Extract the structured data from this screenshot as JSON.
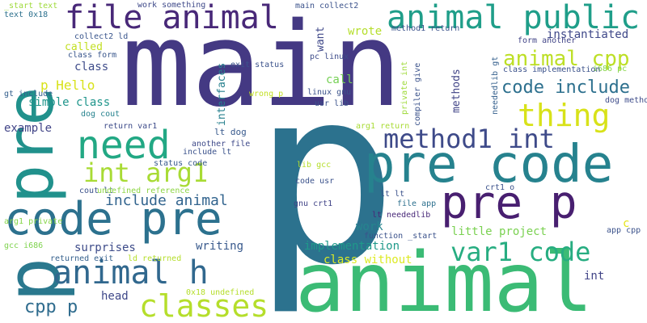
{
  "words": [
    {
      "text": "main"
    },
    {
      "text": "p"
    },
    {
      "text": "animal"
    },
    {
      "text": "pre"
    },
    {
      "text": "pre code"
    },
    {
      "text": "code pre"
    },
    {
      "text": "pre p"
    },
    {
      "text": "p"
    },
    {
      "text": "file animal"
    },
    {
      "text": "animal public"
    },
    {
      "text": "need"
    },
    {
      "text": "animal h"
    },
    {
      "text": "method1 int"
    },
    {
      "text": "classes"
    },
    {
      "text": "int arg1"
    },
    {
      "text": "thing"
    },
    {
      "text": "animal cpp"
    },
    {
      "text": "code include"
    },
    {
      "text": "var1 code"
    },
    {
      "text": "include animal"
    },
    {
      "text": "cpp p"
    },
    {
      "text": "instantiated"
    },
    {
      "text": "p Hello"
    },
    {
      "text": "wrote"
    },
    {
      "text": "called"
    },
    {
      "text": "class"
    },
    {
      "text": "simple class"
    },
    {
      "text": "example"
    },
    {
      "text": "call"
    },
    {
      "text": "writing"
    },
    {
      "text": "surprises"
    },
    {
      "text": "implementation"
    },
    {
      "text": "little project"
    },
    {
      "text": "work"
    },
    {
      "text": "class without"
    },
    {
      "text": "head"
    },
    {
      "text": "int"
    },
    {
      "text": "c"
    },
    {
      "text": "want"
    },
    {
      "text": "interfaces"
    },
    {
      "text": "methods"
    },
    {
      "text": "lt dog"
    },
    {
      "text": "work something"
    },
    {
      "text": "main collect2"
    },
    {
      "text": "_start text"
    },
    {
      "text": "text 0x18"
    },
    {
      "text": "collect2 ld"
    },
    {
      "text": "class form"
    },
    {
      "text": "gt include"
    },
    {
      "text": "dog cout"
    },
    {
      "text": "return var1"
    },
    {
      "text": "another file"
    },
    {
      "text": "include lt"
    },
    {
      "text": "status code"
    },
    {
      "text": "cout lt"
    },
    {
      "text": "undefined reference"
    },
    {
      "text": "arg1 private"
    },
    {
      "text": "gcc i686"
    },
    {
      "text": "returned exit"
    },
    {
      "text": "ld returned"
    },
    {
      "text": "0x18 undefined"
    },
    {
      "text": "exit status"
    },
    {
      "text": "wrong p"
    },
    {
      "text": "pc linux"
    },
    {
      "text": "linux gnu"
    },
    {
      "text": "usr lib"
    },
    {
      "text": "method1 return"
    },
    {
      "text": "private int"
    },
    {
      "text": "compiler give"
    },
    {
      "text": "arg1 return"
    },
    {
      "text": "lib gcc"
    },
    {
      "text": "code usr"
    },
    {
      "text": "gnu crt1"
    },
    {
      "text": "lt lt"
    },
    {
      "text": "file app"
    },
    {
      "text": "lt neededlib"
    },
    {
      "text": "function _start"
    },
    {
      "text": "crt1 o"
    },
    {
      "text": "app cpp"
    },
    {
      "text": "form another"
    },
    {
      "text": "i686 pc"
    },
    {
      "text": "class implementation"
    },
    {
      "text": "neededlib gt"
    },
    {
      "text": "dog method1"
    }
  ]
}
